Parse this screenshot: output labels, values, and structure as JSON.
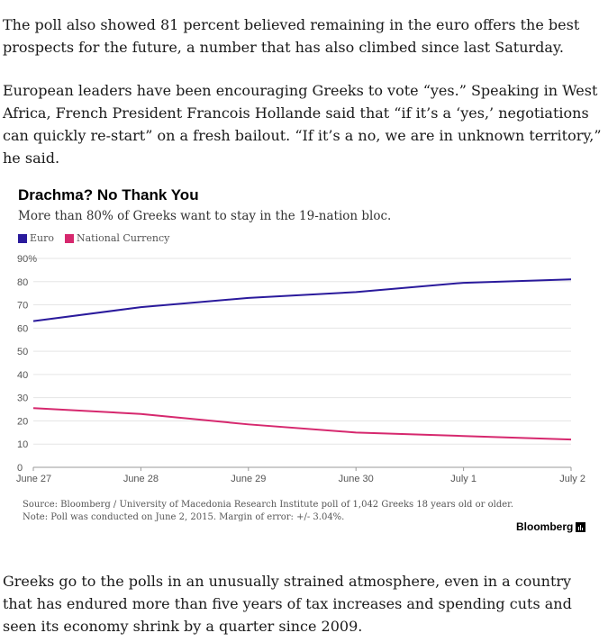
{
  "article": {
    "paragraph1": "The poll also showed 81 percent believed remaining in the euro offers the best prospects for the future, a number that has also climbed since last Saturday.",
    "paragraph2": "European leaders have been encouraging Greeks to vote “yes.” Speaking in West Africa, French President Francois Hollande said that “if it’s a ‘yes,’ negotiations can quickly re-start” on a fresh bailout. “If it’s a no, we are in unknown territory,” he said.",
    "paragraph3": "Greeks go to the polls in an unusually strained atmosphere, even in a country that has endured more than five years of tax increases and spending cuts and seen its economy shrink by a quarter since 2009."
  },
  "chart_data": {
    "type": "line",
    "title": "Drachma? No Thank You",
    "subtitle": "More than 80% of Greeks want to stay in the 19-nation bloc.",
    "x": [
      "June 27",
      "June 28",
      "June 29",
      "June 30",
      "July 1",
      "July 2"
    ],
    "series": [
      {
        "name": "Euro",
        "color": "#2a1a9c",
        "values": [
          63,
          69,
          73,
          75.5,
          79.5,
          81
        ]
      },
      {
        "name": "National Currency",
        "color": "#d6286e",
        "values": [
          25.5,
          23,
          18.5,
          15,
          13.5,
          12
        ]
      }
    ],
    "ylim": [
      0,
      90
    ],
    "yticks": [
      0,
      10,
      20,
      30,
      40,
      50,
      60,
      70,
      80,
      90
    ],
    "ytick_labels": [
      "0",
      "10",
      "20",
      "30",
      "40",
      "50",
      "60",
      "70",
      "80",
      "90%"
    ],
    "grid": true,
    "legend": "top-left",
    "source_line1": "Source: Bloomberg / University of Macedonia Research Institute poll of 1,042 Greeks 18 years old or older.",
    "source_line2": "Note: Poll was conducted on June 2, 2015. Margin of error: +/- 3.04%.",
    "brand": "Bloomberg"
  }
}
